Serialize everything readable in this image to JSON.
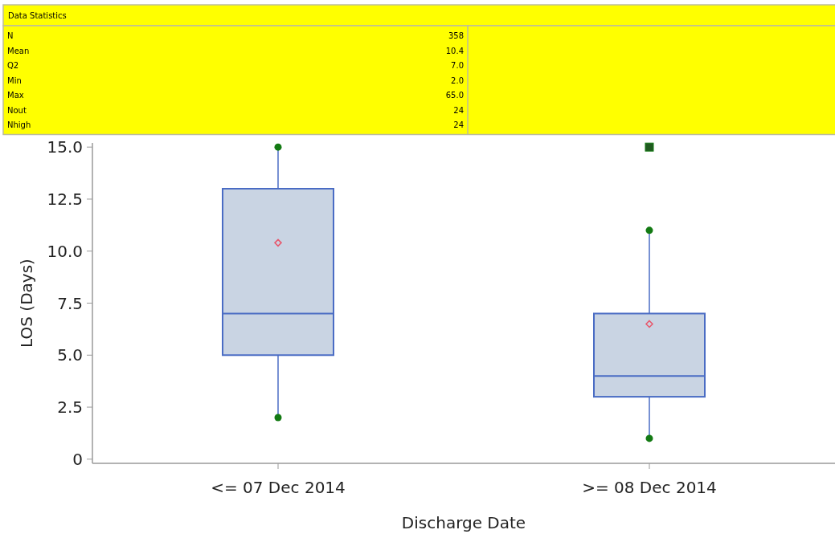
{
  "chart_data": {
    "type": "box",
    "xlabel": "Discharge Date",
    "ylabel": "LOS (Days)",
    "categories": [
      "<=  07 Dec 2014",
      ">=  08 Dec 2014"
    ],
    "boxes": [
      {
        "low": 2,
        "q1": 5,
        "median": 7,
        "q3": 13,
        "high": 15,
        "mean": 10.4
      },
      {
        "low": 1,
        "q1": 3,
        "median": 4,
        "q3": 7,
        "high": 11,
        "mean": 6.5,
        "outliers": [
          15
        ]
      }
    ],
    "series": [
      {
        "type": "scatter",
        "x": [
          "<=  07 Dec 2014",
          "<=  07 Dec 2014",
          ">=  08 Dec 2014",
          ">=  08 Dec 2014"
        ],
        "values": [
          15,
          2,
          11,
          1
        ],
        "color": "#137a13",
        "marker": "circle"
      }
    ],
    "color": "#c9d4e3",
    "ylim": [
      -0.2,
      15.2
    ],
    "yticks": [
      0,
      2.5,
      {
        "value": 5,
        "label": "5.0"
      },
      7.5,
      {
        "value": 10,
        "label": "10.0"
      },
      12.5,
      {
        "value": 15,
        "label": "15.0"
      }
    ],
    "grid": false,
    "annotations": [
      "Data Statistics",
      "N",
      "358",
      "Mean",
      "10.4",
      "Q2",
      "7.0",
      "Min",
      "2.0",
      "Max",
      "65.0",
      "Nout",
      "24",
      "Nhigh",
      "24"
    ]
  }
}
